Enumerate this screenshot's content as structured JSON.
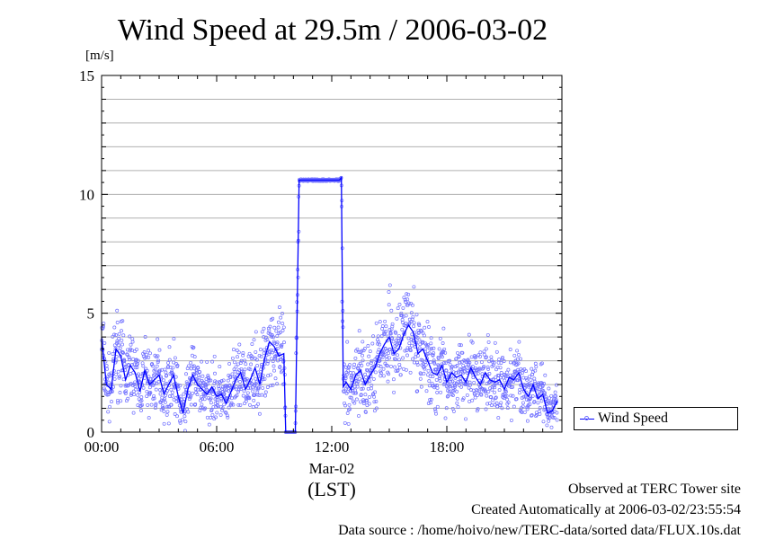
{
  "chart_data": {
    "type": "line",
    "title": "Wind Speed at 29.5m / 2006-03-02",
    "ylabel": "[m/s]",
    "xlabel_date": "Mar-02",
    "xlabel_unit": "(LST)",
    "xlim_hours": [
      0,
      24
    ],
    "ylim": [
      0,
      15
    ],
    "yticks": [
      0,
      5,
      10,
      15
    ],
    "ytick_labels": [
      "0",
      "5",
      "10",
      "15"
    ],
    "xticks_hours": [
      0,
      6,
      12,
      18
    ],
    "xtick_labels": [
      "00:00",
      "06:00",
      "12:00",
      "18:00"
    ],
    "grid": true,
    "legend_position": "right",
    "colors": {
      "line": "#0000ff",
      "markers": "#6f6fff"
    },
    "series": [
      {
        "name": "Wind Speed",
        "x_hours": [
          0,
          0.25,
          0.5,
          0.75,
          1.0,
          1.25,
          1.5,
          1.75,
          2.0,
          2.25,
          2.5,
          2.75,
          3.0,
          3.25,
          3.5,
          3.75,
          4.0,
          4.25,
          4.5,
          4.75,
          5.0,
          5.25,
          5.5,
          5.75,
          6.0,
          6.25,
          6.5,
          6.75,
          7.0,
          7.25,
          7.5,
          7.75,
          8.0,
          8.25,
          8.5,
          8.75,
          9.0,
          9.25,
          9.5,
          9.6,
          9.8,
          10.1,
          10.3,
          10.5,
          11.0,
          11.5,
          12.0,
          12.4,
          12.5,
          12.6,
          12.75,
          13.0,
          13.25,
          13.5,
          13.75,
          14.0,
          14.25,
          14.5,
          14.75,
          15.0,
          15.25,
          15.5,
          15.75,
          16.0,
          16.25,
          16.5,
          16.75,
          17.0,
          17.25,
          17.5,
          17.75,
          18.0,
          18.25,
          18.5,
          18.75,
          19.0,
          19.25,
          19.5,
          19.75,
          20.0,
          20.25,
          20.5,
          20.75,
          21.0,
          21.25,
          21.5,
          21.75,
          22.0,
          22.25,
          22.5,
          22.75,
          23.0,
          23.25,
          23.5,
          23.75
        ],
        "values": [
          4.0,
          2.0,
          1.8,
          3.5,
          3.2,
          2.2,
          2.8,
          2.5,
          1.7,
          2.6,
          2.0,
          2.2,
          2.4,
          1.6,
          2.0,
          2.4,
          1.5,
          0.8,
          1.8,
          2.4,
          2.0,
          1.8,
          1.6,
          1.9,
          1.5,
          1.6,
          1.2,
          1.7,
          2.2,
          2.5,
          1.8,
          2.2,
          2.7,
          2.0,
          3.1,
          3.8,
          3.6,
          3.2,
          3.3,
          0.0,
          0.0,
          0.0,
          10.6,
          10.6,
          10.6,
          10.6,
          10.6,
          10.6,
          10.7,
          1.9,
          2.1,
          1.8,
          2.4,
          2.6,
          2.0,
          2.4,
          2.7,
          3.3,
          3.7,
          4.0,
          3.3,
          3.5,
          4.1,
          4.5,
          4.2,
          3.3,
          3.5,
          3.0,
          2.5,
          2.4,
          2.8,
          2.1,
          2.5,
          2.3,
          2.4,
          2.1,
          2.7,
          2.3,
          2.0,
          2.5,
          2.2,
          2.1,
          2.2,
          1.8,
          2.3,
          2.2,
          2.5,
          1.8,
          1.5,
          2.0,
          1.4,
          1.6,
          0.8,
          0.9,
          1.3
        ]
      }
    ]
  },
  "footer": {
    "line1": "Observed at TERC Tower site",
    "line2": "Created Automatically at 2006-03-02/23:55:54",
    "line3": "Data source : /home/hoivo/new/TERC-data/sorted  data/FLUX.10s.dat"
  }
}
